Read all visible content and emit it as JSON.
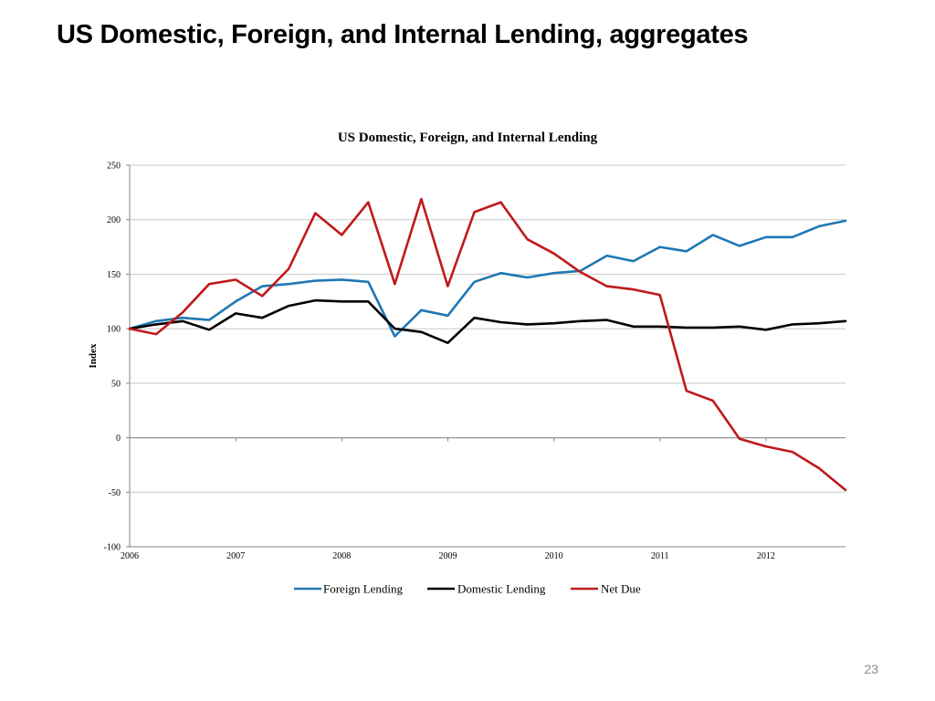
{
  "slide": {
    "title": "US Domestic, Foreign, and Internal Lending, aggregates",
    "page_number": "23"
  },
  "chart_data": {
    "type": "line",
    "title": "US Domestic, Foreign, and Internal  Lending",
    "xlabel": "",
    "ylabel": "Index",
    "xlim": [
      2006,
      2012.75
    ],
    "ylim": [
      -100,
      250
    ],
    "y_ticks": [
      -100,
      -50,
      0,
      50,
      100,
      150,
      200,
      250
    ],
    "x_ticks": [
      2006,
      2007,
      2008,
      2009,
      2010,
      2011,
      2012
    ],
    "grid": true,
    "legend_position": "bottom",
    "x": [
      2006.0,
      2006.25,
      2006.5,
      2006.75,
      2007.0,
      2007.25,
      2007.5,
      2007.75,
      2008.0,
      2008.25,
      2008.5,
      2008.75,
      2009.0,
      2009.25,
      2009.5,
      2009.75,
      2010.0,
      2010.25,
      2010.5,
      2010.75,
      2011.0,
      2011.25,
      2011.5,
      2011.75,
      2012.0,
      2012.25,
      2012.5,
      2012.75
    ],
    "series": [
      {
        "name": "Foreign Lending",
        "color": "#1f77b4",
        "values": [
          100,
          107,
          110,
          108,
          125,
          139,
          141,
          144,
          145,
          143,
          93,
          117,
          112,
          143,
          151,
          147,
          151,
          153,
          167,
          162,
          175,
          171,
          186,
          176,
          184,
          184,
          194,
          199
        ]
      },
      {
        "name": "Domestic Lending",
        "color": "#000000",
        "values": [
          100,
          104,
          107,
          99,
          114,
          110,
          121,
          126,
          125,
          125,
          100,
          97,
          87,
          110,
          106,
          104,
          105,
          107,
          108,
          102,
          102,
          101,
          101,
          102,
          99,
          104,
          105,
          107
        ]
      },
      {
        "name": "Net Due",
        "color": "#c0191b",
        "values": [
          100,
          95,
          115,
          141,
          145,
          130,
          155,
          206,
          186,
          216,
          141,
          219,
          139,
          207,
          216,
          182,
          169,
          152,
          139,
          136,
          131,
          43,
          34,
          -1,
          -8,
          -13,
          -28,
          -48
        ]
      }
    ]
  }
}
